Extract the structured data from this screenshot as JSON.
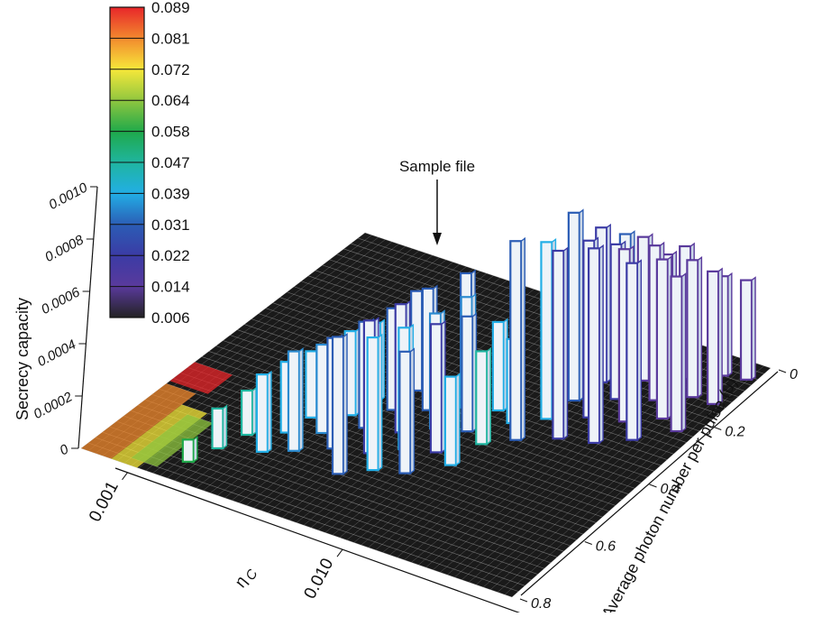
{
  "chart_data": {
    "type": "bar",
    "subtype": "3d-bar",
    "title": "",
    "zlabel": "Secrecy capacity",
    "xlabel": "η_C",
    "xlabel_main": "η",
    "xlabel_sub": "C",
    "ylabel": "Average photon number per pulse (μ)",
    "z_ticks": [
      "0",
      "0.0002",
      "0.0004",
      "0.0006",
      "0.0008",
      "0.0010"
    ],
    "zlim": [
      0,
      0.001
    ],
    "x_ticks": [
      {
        "label": "0.001",
        "pos": 0.03
      },
      {
        "label": "0.010",
        "pos": 0.56
      }
    ],
    "y_ticks": [
      "0",
      "0.2",
      "0.4",
      "0.6",
      "0.8"
    ],
    "ylim": [
      0,
      0.8
    ],
    "grid": false,
    "colorbar": {
      "labels": [
        "0.089",
        "0.081",
        "0.072",
        "0.064",
        "0.058",
        "0.047",
        "0.039",
        "0.031",
        "0.022",
        "0.014",
        "0.006"
      ],
      "colors": [
        "#e8262a",
        "#f28a2e",
        "#f7e83a",
        "#8fc63f",
        "#1fa94a",
        "#1fb5a0",
        "#22aee6",
        "#2b5db5",
        "#3b3ba5",
        "#5a3a9c",
        "#222222"
      ]
    },
    "annotation": {
      "text": "Sample file"
    },
    "bars": [
      {
        "x": 0.2,
        "mu": 0.74,
        "z": 0.0001,
        "c": "#1fa94a"
      },
      {
        "x": 0.22,
        "mu": 0.68,
        "z": 0.00018,
        "c": "#1fb5a0"
      },
      {
        "x": 0.24,
        "mu": 0.62,
        "z": 0.0002,
        "c": "#1fb5a0"
      },
      {
        "x": 0.3,
        "mu": 0.65,
        "z": 0.00035,
        "c": "#22aee6"
      },
      {
        "x": 0.3,
        "mu": 0.58,
        "z": 0.00032,
        "c": "#22aee6"
      },
      {
        "x": 0.31,
        "mu": 0.52,
        "z": 0.0003,
        "c": "#22aee6"
      },
      {
        "x": 0.32,
        "mu": 0.46,
        "z": 0.00028,
        "c": "#22aee6"
      },
      {
        "x": 0.35,
        "mu": 0.62,
        "z": 0.00045,
        "c": "#2b8bd0"
      },
      {
        "x": 0.36,
        "mu": 0.55,
        "z": 0.0004,
        "c": "#2b8bd0"
      },
      {
        "x": 0.37,
        "mu": 0.48,
        "z": 0.00038,
        "c": "#22aee6"
      },
      {
        "x": 0.38,
        "mu": 0.42,
        "z": 0.00035,
        "c": "#22aee6"
      },
      {
        "x": 0.41,
        "mu": 0.58,
        "z": 0.0005,
        "c": "#2b5db5"
      },
      {
        "x": 0.42,
        "mu": 0.5,
        "z": 0.00048,
        "c": "#2b5db5"
      },
      {
        "x": 0.43,
        "mu": 0.43,
        "z": 0.00046,
        "c": "#2b5db5"
      },
      {
        "x": 0.43,
        "mu": 0.36,
        "z": 0.00045,
        "c": "#2b5db5"
      },
      {
        "x": 0.47,
        "mu": 0.64,
        "z": 0.00062,
        "c": "#2b5db5"
      },
      {
        "x": 0.48,
        "mu": 0.56,
        "z": 0.0006,
        "c": "#3b3ba5"
      },
      {
        "x": 0.49,
        "mu": 0.48,
        "z": 0.00058,
        "c": "#3b3ba5"
      },
      {
        "x": 0.49,
        "mu": 0.4,
        "z": 0.00055,
        "c": "#2b5db5"
      },
      {
        "x": 0.5,
        "mu": 0.3,
        "z": 0.0005,
        "c": "#2b5db5"
      },
      {
        "x": 0.52,
        "mu": 0.6,
        "z": 0.0006,
        "c": "#22aee6"
      },
      {
        "x": 0.53,
        "mu": 0.52,
        "z": 0.00055,
        "c": "#22aee6"
      },
      {
        "x": 0.54,
        "mu": 0.44,
        "z": 0.00052,
        "c": "#2b8bd0"
      },
      {
        "x": 0.55,
        "mu": 0.36,
        "z": 0.0005,
        "c": "#2b8bd0"
      },
      {
        "x": 0.58,
        "mu": 0.58,
        "z": 0.00055,
        "c": "#2b5db5"
      },
      {
        "x": 0.59,
        "mu": 0.5,
        "z": 0.00058,
        "c": "#3b3ba5"
      },
      {
        "x": 0.6,
        "mu": 0.42,
        "z": 0.00052,
        "c": "#2b5db5"
      },
      {
        "x": 0.61,
        "mu": 0.34,
        "z": 0.0004,
        "c": "#22aee6"
      },
      {
        "x": 0.64,
        "mu": 0.52,
        "z": 0.0004,
        "c": "#22aee6"
      },
      {
        "x": 0.65,
        "mu": 0.44,
        "z": 0.00042,
        "c": "#1fb5a0"
      },
      {
        "x": 0.66,
        "mu": 0.36,
        "z": 0.00038,
        "c": "#22aee6"
      },
      {
        "x": 0.7,
        "mu": 0.4,
        "z": 0.0009,
        "c": "#2b5db5"
      },
      {
        "x": 0.71,
        "mu": 0.32,
        "z": 0.0008,
        "c": "#22aee6"
      },
      {
        "x": 0.72,
        "mu": 0.25,
        "z": 0.00085,
        "c": "#2b5db5"
      },
      {
        "x": 0.73,
        "mu": 0.18,
        "z": 0.0007,
        "c": "#3b3ba5"
      },
      {
        "x": 0.74,
        "mu": 0.12,
        "z": 0.0006,
        "c": "#2b5db5"
      },
      {
        "x": 0.77,
        "mu": 0.36,
        "z": 0.00085,
        "c": "#3b3ba5"
      },
      {
        "x": 0.78,
        "mu": 0.28,
        "z": 0.0008,
        "c": "#3b3ba5"
      },
      {
        "x": 0.79,
        "mu": 0.21,
        "z": 0.0007,
        "c": "#3b3ba5"
      },
      {
        "x": 0.8,
        "mu": 0.14,
        "z": 0.00065,
        "c": "#5a3a9c"
      },
      {
        "x": 0.81,
        "mu": 0.08,
        "z": 0.0005,
        "c": "#5a3a9c"
      },
      {
        "x": 0.84,
        "mu": 0.34,
        "z": 0.00088,
        "c": "#3b3ba5"
      },
      {
        "x": 0.85,
        "mu": 0.26,
        "z": 0.00078,
        "c": "#5a3a9c"
      },
      {
        "x": 0.86,
        "mu": 0.18,
        "z": 0.0007,
        "c": "#5a3a9c"
      },
      {
        "x": 0.87,
        "mu": 0.1,
        "z": 0.0006,
        "c": "#5a3a9c"
      },
      {
        "x": 0.9,
        "mu": 0.3,
        "z": 0.0008,
        "c": "#3b3ba5"
      },
      {
        "x": 0.91,
        "mu": 0.22,
        "z": 0.00072,
        "c": "#5a3a9c"
      },
      {
        "x": 0.92,
        "mu": 0.14,
        "z": 0.00062,
        "c": "#5a3a9c"
      },
      {
        "x": 0.93,
        "mu": 0.06,
        "z": 0.00045,
        "c": "#5a3a9c"
      },
      {
        "x": 0.96,
        "mu": 0.24,
        "z": 0.0007,
        "c": "#5a3a9c"
      },
      {
        "x": 0.97,
        "mu": 0.14,
        "z": 0.0006,
        "c": "#5a3a9c"
      },
      {
        "x": 0.98,
        "mu": 0.05,
        "z": 0.00045,
        "c": "#5a3a9c"
      }
    ]
  }
}
